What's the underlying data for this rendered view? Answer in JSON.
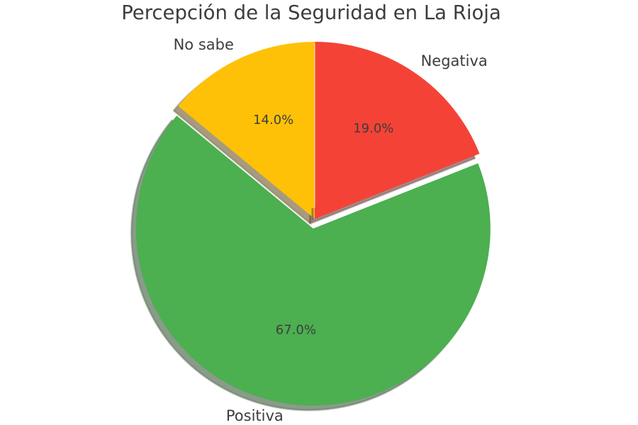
{
  "chart_data": {
    "type": "pie",
    "title": "Percepción de la Seguridad en La Rioja",
    "slices": [
      {
        "label": "Negativa",
        "value": 19.0,
        "pct_label": "19.0%",
        "color": "#f44336",
        "explode": 0.0
      },
      {
        "label": "Positiva",
        "value": 67.0,
        "pct_label": "67.0%",
        "color": "#4caf50",
        "explode": 0.055
      },
      {
        "label": "No sabe",
        "value": 14.0,
        "pct_label": "14.0%",
        "color": "#ffc107",
        "explode": 0.0
      }
    ],
    "start_angle": 90,
    "direction": "clockwise",
    "shadow": true,
    "label_distance": 1.1,
    "pct_distance": 0.6,
    "text_color": "#3d3d3d",
    "background": "#ffffff"
  }
}
